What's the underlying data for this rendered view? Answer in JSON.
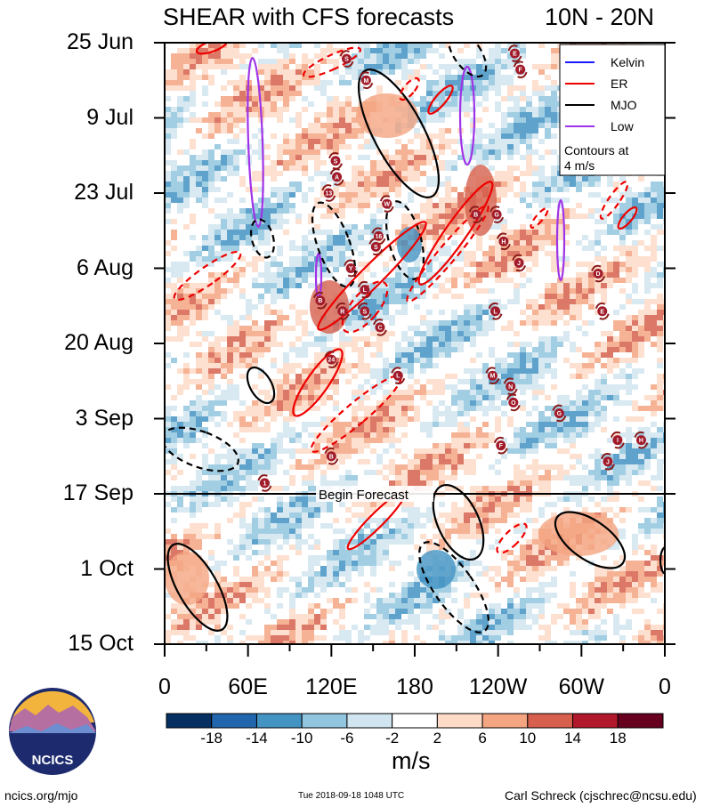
{
  "chart_data": {
    "type": "heatmap",
    "title": "SHEAR with CFS forecasts",
    "region": "10N - 20N",
    "y_ticks": [
      "25 Jun",
      "9 Jul",
      "23 Jul",
      "6 Aug",
      "20 Aug",
      "3 Sep",
      "17 Sep",
      "1 Oct",
      "15 Oct"
    ],
    "x_ticks": [
      "0",
      "60E",
      "120E",
      "180",
      "120W",
      "60W",
      "0"
    ],
    "x_range_deg_east": [
      0,
      360
    ],
    "forecast_label": "Begin Forecast",
    "forecast_start": "17 Sep",
    "units": "m/s",
    "colorbar_levels": [
      -18,
      -14,
      -10,
      -6,
      -2,
      2,
      6,
      10,
      14,
      18
    ],
    "colorbar_labels": [
      "-18",
      "-14",
      "-10",
      "-6",
      "-2",
      "2",
      "6",
      "10",
      "14",
      "18"
    ],
    "colorbar_colors": [
      "#053061",
      "#2166ac",
      "#4393c3",
      "#92c5de",
      "#d1e5f0",
      "#ffffff",
      "#fddbc7",
      "#f4a582",
      "#d6604d",
      "#b2182b",
      "#67001f"
    ],
    "legend": [
      {
        "name": "Kelvin",
        "color": "#1a1aff"
      },
      {
        "name": "ER",
        "color": "#ee0000"
      },
      {
        "name": "MJO",
        "color": "#000000"
      },
      {
        "name": "Low",
        "color": "#a033e8"
      }
    ],
    "legend_note": [
      "Contours at",
      "4 m/s"
    ],
    "storms": [
      {
        "label": "S",
        "lon": 123,
        "date": "17 Jul"
      },
      {
        "label": "A",
        "lon": 124,
        "date": "20 Jul"
      },
      {
        "label": "13",
        "lon": 118,
        "date": "23 Jul"
      },
      {
        "label": "W",
        "lon": 160,
        "date": "25 Jul"
      },
      {
        "label": "M",
        "lon": 145,
        "date": "2 Jul"
      },
      {
        "label": "E",
        "lon": 252,
        "date": "27 Jun"
      },
      {
        "label": "F",
        "lon": 256,
        "date": "30 Jun"
      },
      {
        "label": "S",
        "lon": 131,
        "date": "28 Jun"
      },
      {
        "label": "16",
        "lon": 154,
        "date": "31 Jul"
      },
      {
        "label": "S",
        "lon": 152,
        "date": "2 Aug"
      },
      {
        "label": "Y",
        "lon": 134,
        "date": "6 Aug"
      },
      {
        "label": "B",
        "lon": 112,
        "date": "12 Aug"
      },
      {
        "label": "L",
        "lon": 144,
        "date": "10 Aug"
      },
      {
        "label": "R",
        "lon": 128,
        "date": "14 Aug"
      },
      {
        "label": "S",
        "lon": 144,
        "date": "14 Aug"
      },
      {
        "label": "C",
        "lon": 155,
        "date": "17 Aug"
      },
      {
        "label": "24",
        "lon": 120,
        "date": "23 Aug"
      },
      {
        "label": "G",
        "lon": 239,
        "date": "27 Jul"
      },
      {
        "label": "H",
        "lon": 244,
        "date": "1 Aug"
      },
      {
        "label": "B",
        "lon": 224,
        "date": "27 Jul"
      },
      {
        "label": "J",
        "lon": 255,
        "date": "5 Aug"
      },
      {
        "label": "L",
        "lon": 238,
        "date": "14 Aug"
      },
      {
        "label": "E",
        "lon": 315,
        "date": "14 Aug"
      },
      {
        "label": "D",
        "lon": 312,
        "date": "7 Aug"
      },
      {
        "label": "M",
        "lon": 236,
        "date": "26 Aug"
      },
      {
        "label": "N",
        "lon": 249,
        "date": "28 Aug"
      },
      {
        "label": "O",
        "lon": 251,
        "date": "31 Aug"
      },
      {
        "label": "G",
        "lon": 284,
        "date": "2 Sep"
      },
      {
        "label": "F",
        "lon": 242,
        "date": "8 Sep"
      },
      {
        "label": "I",
        "lon": 326,
        "date": "7 Sep"
      },
      {
        "label": "H",
        "lon": 343,
        "date": "7 Sep"
      },
      {
        "label": "J",
        "lon": 319,
        "date": "11 Sep"
      },
      {
        "label": "B",
        "lon": 120,
        "date": "10 Sep"
      },
      {
        "label": "1",
        "lon": 72,
        "date": "15 Sep"
      },
      {
        "label": "L",
        "lon": 168,
        "date": "26 Aug"
      }
    ],
    "footer_left": "ncics.org/mjo",
    "footer_center": "Tue 2018-09-18 1048 UTC",
    "footer_right": "Carl Schreck (cjschrec@ncsu.edu)",
    "logo_text": "NCICS"
  }
}
